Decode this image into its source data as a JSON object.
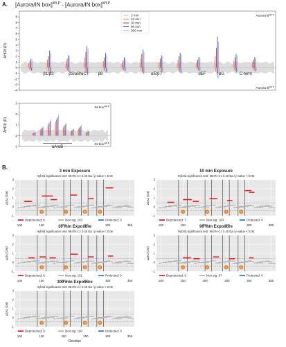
{
  "panel_a": {
    "letter": "A.",
    "heading": "[Aurora/IN box]",
    "heading_sup1": "Wt-P",
    "heading_mid": " - [Aurora/IN box]",
    "heading_sup2": "Wt-P",
    "top_label": "Aurora B",
    "top_label_sup": "Wt-P",
    "bottom_label": "Aurora B",
    "bottom_label_sup": "Wt-P",
    "ylabel": "ΔHDX (D)",
    "regions": [
      "β1/β2",
      "β3/αB/αC",
      "β6",
      "αE/β7",
      "αEF",
      "αG",
      "C-term"
    ],
    "legend": [
      {
        "name": "3 min",
        "color": "#f2b3b3"
      },
      {
        "name": "10 min",
        "color": "#e46a6a"
      },
      {
        "name": "30 min",
        "color": "#c0392b"
      },
      {
        "name": "90 min",
        "color": "#3b4fb0"
      },
      {
        "name": "300 min",
        "color": "#9fa8d8"
      }
    ]
  },
  "panel_inbox": {
    "top_label": "IN-box",
    "top_label_sup": "Wt-P",
    "bottom_label": "IN-box",
    "bottom_label_sup": "Wt-P",
    "ylabel": "ΔHDX (D)",
    "region": "αA/αB"
  },
  "panel_b": {
    "letter": "B.",
    "xlabel": "Residue",
    "ylabel": "ΔDU (Da)",
    "panels": [
      {
        "title": "3 min Exposure",
        "subtitle": "Hybrid significance test: 98.0% CI: 0.40 Da / p-value < 0.05",
        "legend_dep": "Deprotected: 6",
        "legend_non": "Non-sig: 103",
        "legend_pro": "Protected: 0"
      },
      {
        "title": "10 min Exposure",
        "subtitle": "Hybrid significance test: 98.0% CI: 0.40 Da / p-value < 0.05",
        "legend_dep": "Deprotected: 7",
        "legend_non": "Non-sig: 100",
        "legend_pro": "Protected: 0"
      },
      {
        "title": "30 min Exposure",
        "subtitle": "Hybrid significance test: 98.0% CI: 0.40 Da / p-value < 0.05",
        "legend_dep": "Deprotected: 6",
        "legend_non": "Non-sig: 101",
        "legend_pro": "Protected: 0"
      },
      {
        "title": "90 min Exposure",
        "subtitle": "Hybrid significance test: 98.0% CI: 0.40 Da / p-value < 0.05",
        "legend_dep": "Deprotected: 5",
        "legend_non": "Non-sig: 97",
        "legend_pro": "Protected: 0"
      },
      {
        "title": "300 min Exposure",
        "subtitle": "Hybrid significance test: 98.0% CI: 0.40 Da / p-value < 0.05",
        "legend_dep": "Deprotected: 0",
        "legend_non": "Non-sig: 100",
        "legend_pro": "Protected: 0"
      }
    ],
    "markers": [
      "1",
      "2",
      "3",
      "4"
    ]
  },
  "colors": {
    "deprotected": "#e8202a",
    "nonsig": "#b3b3b3",
    "protected": "#2a7de1",
    "marker": "#e8862a",
    "panel_bg": "#e8e8e8"
  },
  "chart_data": [
    {
      "type": "bar",
      "title": "[Aurora/IN box]Wt-P - [Aurora/IN box]Wt-P",
      "ylabel": "ΔHDX (D)",
      "ylim": [
        -4,
        10
      ],
      "yticks": [
        -4,
        -3,
        -2,
        -1,
        0,
        1,
        2,
        3,
        4,
        5,
        6,
        7,
        8,
        9
      ],
      "series": [
        {
          "name": "3 min",
          "values": [
            0.4,
            0.8,
            0.6,
            1.0,
            0.7,
            0.5,
            0.9,
            0.6,
            0.8,
            0.5,
            1.2,
            0.7,
            0.6
          ]
        },
        {
          "name": "10 min",
          "values": [
            0.8,
            1.4,
            1.1,
            1.8,
            1.2,
            0.9,
            1.6,
            1.0,
            1.3,
            0.9,
            2.0,
            1.2,
            1.0
          ]
        },
        {
          "name": "30 min",
          "values": [
            1.2,
            2.0,
            1.6,
            2.8,
            1.8,
            1.3,
            2.4,
            1.6,
            2.0,
            1.4,
            3.5,
            1.8,
            1.4
          ]
        },
        {
          "name": "90 min",
          "values": [
            1.6,
            3.0,
            2.2,
            3.8,
            2.6,
            1.8,
            3.2,
            2.2,
            2.6,
            1.9,
            5.5,
            2.4,
            1.9
          ]
        },
        {
          "name": "300 min",
          "values": [
            1.4,
            2.6,
            2.0,
            3.4,
            2.2,
            1.6,
            2.8,
            2.0,
            2.3,
            1.7,
            4.6,
            2.1,
            1.6
          ]
        }
      ],
      "regions": [
        "β1/β2",
        "β3/αB/αC",
        "β6",
        "αE/β7",
        "αEF",
        "αG",
        "C-term"
      ]
    },
    {
      "type": "bar",
      "ylabel": "ΔHDX (D)",
      "ylim": [
        -1,
        3
      ],
      "yticks": [
        -1,
        0,
        1,
        2,
        3
      ],
      "values": [
        0.3,
        0.8,
        1.4,
        1.8,
        1.1,
        0.6,
        0.9,
        0.4
      ],
      "regions": [
        "αA/αB"
      ]
    },
    {
      "type": "scatter",
      "title": "3 min Exposure",
      "xlabel": "Residue",
      "ylabel": "ΔDU (Da)",
      "xlim": [
        90,
        360
      ],
      "xticks": [
        100,
        150,
        200,
        250,
        300,
        350
      ],
      "ylim": [
        -1,
        3
      ],
      "yticks": [
        -1,
        0,
        1,
        2,
        3
      ],
      "deprotected": [
        [
          150,
          175,
          1.2
        ],
        [
          215,
          230,
          1.3
        ],
        [
          295,
          312,
          2.1
        ],
        [
          255,
          268,
          0.9
        ],
        [
          170,
          185,
          0.8
        ],
        [
          110,
          128,
          0.6
        ]
      ]
    },
    {
      "type": "scatter",
      "title": "10 min Exposure",
      "xlabel": "Residue",
      "ylabel": "ΔDU (Da)",
      "xlim": [
        90,
        360
      ],
      "xticks": [
        100,
        150,
        200,
        250,
        300,
        350
      ],
      "ylim": [
        -1,
        3
      ],
      "yticks": [
        -1,
        0,
        1,
        2,
        3
      ],
      "deprotected": [
        [
          150,
          170,
          0.8
        ],
        [
          210,
          228,
          0.9
        ],
        [
          290,
          305,
          1.8
        ],
        [
          300,
          312,
          1.6
        ],
        [
          250,
          262,
          0.7
        ],
        [
          172,
          186,
          0.6
        ],
        [
          115,
          130,
          0.5
        ]
      ]
    },
    {
      "type": "scatter",
      "title": "30 min Exposure",
      "xlabel": "Residue",
      "ylabel": "ΔDU (Da)",
      "xlim": [
        90,
        360
      ],
      "xticks": [
        100,
        150,
        200,
        250,
        300,
        350
      ],
      "ylim": [
        -1,
        3
      ],
      "yticks": [
        -1,
        0,
        1,
        2,
        3
      ],
      "deprotected": [
        [
          145,
          160,
          0.6
        ],
        [
          168,
          182,
          0.5
        ],
        [
          215,
          232,
          0.9
        ],
        [
          255,
          268,
          0.6
        ],
        [
          120,
          134,
          0.5
        ],
        [
          300,
          312,
          0.7
        ]
      ]
    },
    {
      "type": "scatter",
      "title": "90 min Exposure",
      "xlabel": "Residue",
      "ylabel": "ΔDU (Da)",
      "xlim": [
        90,
        360
      ],
      "xticks": [
        100,
        150,
        200,
        250,
        300,
        350
      ],
      "ylim": [
        -1,
        3
      ],
      "yticks": [
        -1,
        0,
        1,
        2,
        3
      ],
      "deprotected": [
        [
          150,
          168,
          0.5
        ],
        [
          174,
          188,
          0.4
        ],
        [
          218,
          232,
          0.6
        ],
        [
          300,
          310,
          0.5
        ],
        [
          255,
          268,
          0.4
        ]
      ]
    },
    {
      "type": "scatter",
      "title": "300 min Exposure",
      "xlabel": "Residue",
      "ylabel": "ΔDU (Da)",
      "xlim": [
        90,
        360
      ],
      "xticks": [
        100,
        150,
        200,
        250,
        300,
        350
      ],
      "ylim": [
        -1,
        3
      ],
      "yticks": [
        -1,
        0,
        1,
        2,
        3
      ],
      "deprotected": []
    }
  ]
}
